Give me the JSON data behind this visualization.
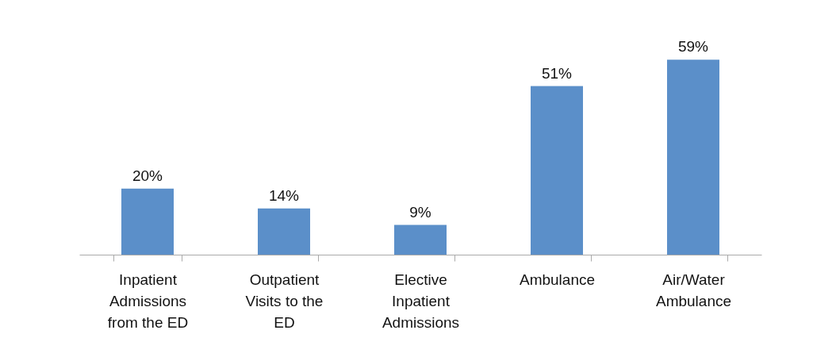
{
  "chart_data": {
    "type": "bar",
    "categories": [
      "Inpatient Admissions from the ED",
      "Outpatient Visits to the ED",
      "Elective Inpatient Admissions",
      "Ambulance",
      "Air/Water Ambulance"
    ],
    "values": [
      20,
      14,
      9,
      51,
      59
    ],
    "value_labels": [
      "20%",
      "14%",
      "9%",
      "51%",
      "59%"
    ],
    "color": "#5b8fc9",
    "grid": false
  }
}
